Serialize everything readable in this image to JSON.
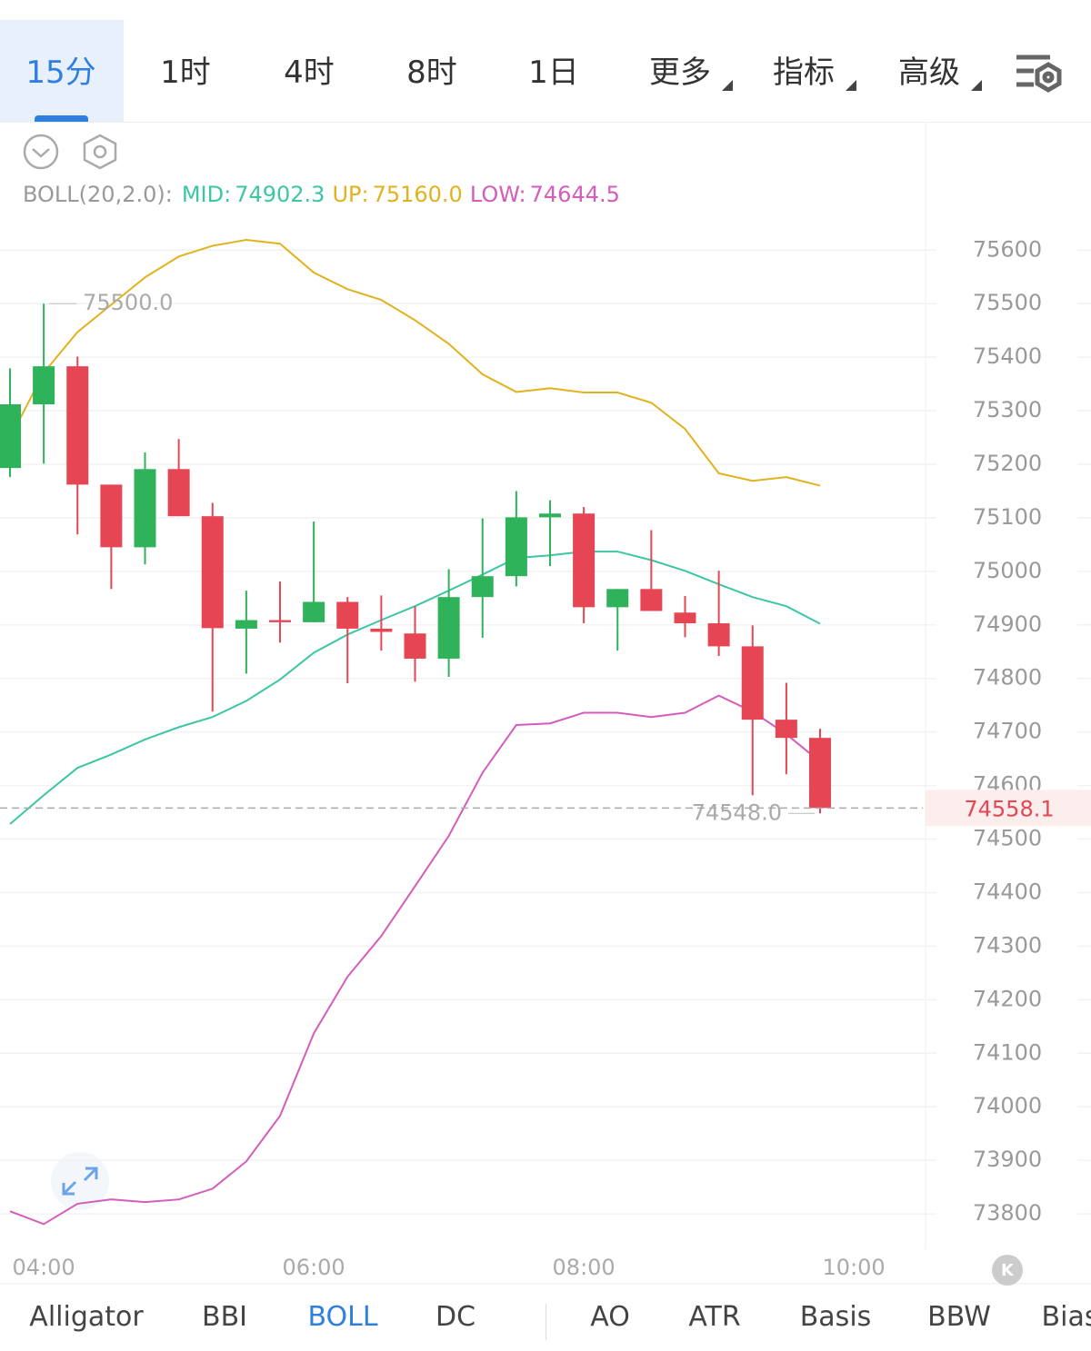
{
  "tabs": [
    "15分",
    "1时",
    "4时",
    "8时",
    "1日",
    "更多",
    "指标",
    "高级"
  ],
  "active_tab": 0,
  "dropdown_tabs": [
    5,
    6,
    7
  ],
  "chart_data": {
    "type": "candlestick",
    "indicator": {
      "label": "BOLL(20,2.0):",
      "series": [
        {
          "name": "MID:",
          "color": "#3cc6a4",
          "last_label": "74902.3",
          "values": [
            74528,
            74582,
            74633,
            74658,
            74686,
            74709,
            74728,
            74758,
            74798,
            74848,
            74882,
            74909,
            74935,
            74964,
            74994,
            75025,
            75030,
            75037,
            75037,
            75021,
            75001,
            74976,
            74952,
            74935,
            74902.3
          ]
        },
        {
          "name": "UP:",
          "color": "#e2b21e",
          "last_label": "75160.0",
          "values": [
            75249,
            75371,
            75447,
            75498,
            75549,
            75588,
            75608,
            75619,
            75612,
            75558,
            75527,
            75507,
            75469,
            75425,
            75368,
            75335,
            75342,
            75334,
            75334,
            75315,
            75266,
            75183,
            75169,
            75176,
            75160
          ]
        },
        {
          "name": "LOW:",
          "color": "#d45cbc",
          "last_label": "74644.5",
          "values": [
            73805,
            73781,
            73819,
            73827,
            73822,
            73827,
            73847,
            73898,
            73983,
            74137,
            74243,
            74319,
            74412,
            74506,
            74624,
            74713,
            74716,
            74736,
            74736,
            74728,
            74736,
            74768,
            74738,
            74696,
            74644.5
          ]
        }
      ]
    },
    "open": [
      75193,
      75312,
      75383,
      75162,
      75045,
      75191,
      75103,
      74893,
      74909,
      74905,
      74943,
      74893,
      74884,
      74837,
      74952,
      74991,
      75101,
      75108,
      74933,
      74967,
      74923,
      74903,
      74860,
      74723,
      74689
    ],
    "high": [
      75379,
      75500,
      75401,
      75162,
      75222,
      75247,
      75128,
      74964,
      74981,
      75093,
      74952,
      74955,
      74935,
      75004,
      75099,
      75150,
      75133,
      75120,
      74967,
      75077,
      74954,
      75001,
      74899,
      74792,
      74706
    ],
    "low": [
      75176,
      75201,
      75069,
      74967,
      75013,
      75103,
      74738,
      74809,
      74867,
      74905,
      74791,
      74852,
      74794,
      74803,
      74876,
      74972,
      75010,
      74903,
      74852,
      74926,
      74877,
      74842,
      74582,
      74621,
      74548
    ],
    "close": [
      75312,
      75383,
      75162,
      75045,
      75191,
      75103,
      74894,
      74909,
      74905,
      74943,
      74893,
      74887,
      74837,
      74952,
      74991,
      75101,
      75108,
      74933,
      74967,
      74926,
      74903,
      74860,
      74723,
      74689,
      74558.1
    ],
    "up_color": "#2fb35a",
    "down_color": "#e64553",
    "max_marker": {
      "value": 75500,
      "label": "75500.0"
    },
    "min_marker": {
      "value": 74548,
      "label": "74548.0"
    },
    "last_price": 74558.1,
    "x_labels": [
      "04:00",
      "06:00",
      "08:00",
      "10:00"
    ],
    "ylim": [
      73734,
      75838
    ],
    "yticks": [
      73800,
      73900,
      74000,
      74100,
      74200,
      74300,
      74400,
      74500,
      74600,
      74700,
      74800,
      74900,
      75000,
      75100,
      75200,
      75300,
      75400,
      75500,
      75600
    ],
    "grid": true
  },
  "indicators": [
    "Alligator",
    "BBI",
    "BOLL",
    "DC",
    "AO",
    "ATR",
    "Basis",
    "BBW",
    "Bias"
  ],
  "active_indicator": 2
}
